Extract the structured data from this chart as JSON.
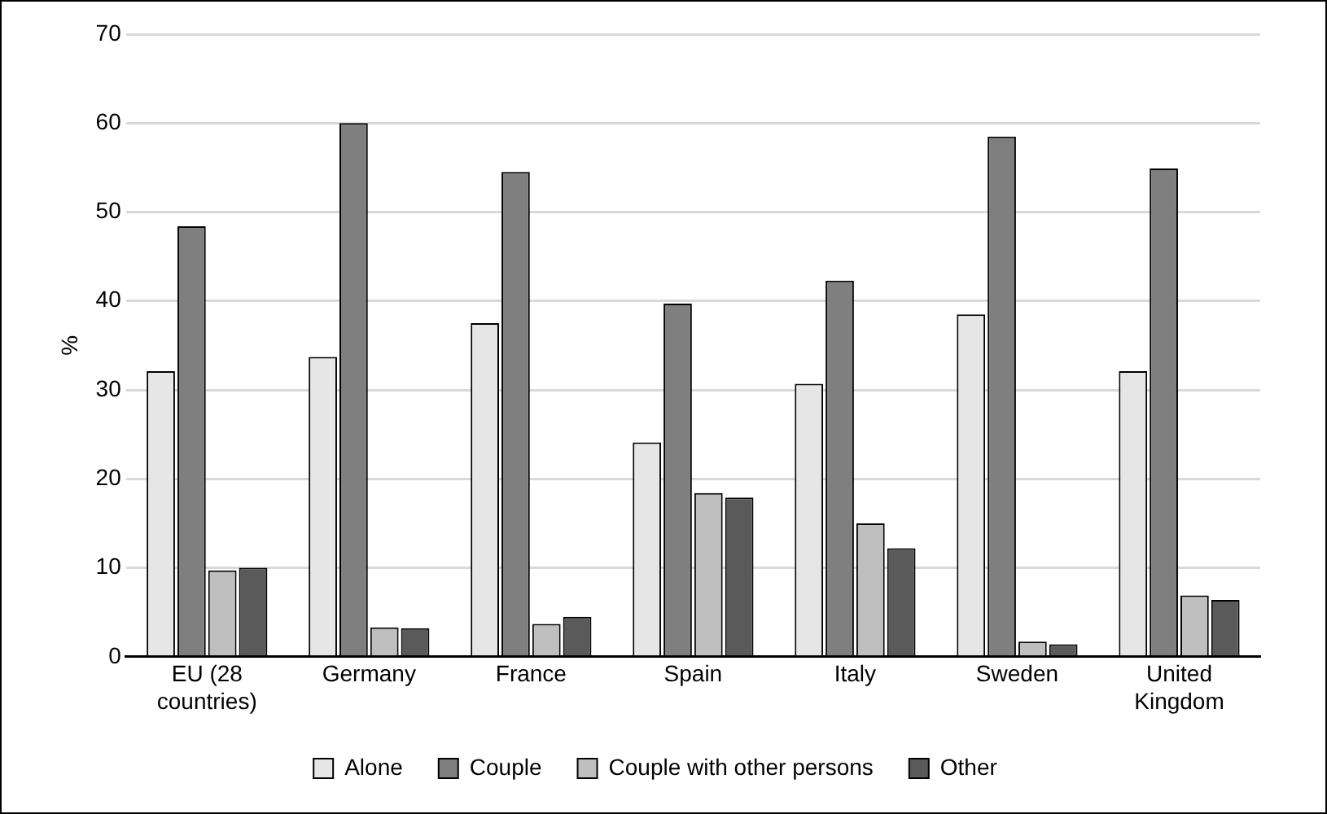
{
  "chart_data": {
    "type": "bar",
    "ylabel": "%",
    "categories": [
      "EU (28 countries)",
      "Germany",
      "France",
      "Spain",
      "Italy",
      "Sweden",
      "United Kingdom"
    ],
    "series": [
      {
        "name": "Alone",
        "color": "#e6e6e6",
        "values": [
          32.1,
          33.7,
          37.5,
          24.1,
          30.7,
          38.5,
          32.1
        ]
      },
      {
        "name": "Couple",
        "color": "#7f7f7f",
        "values": [
          48.4,
          60.0,
          54.5,
          39.7,
          42.3,
          58.5,
          54.9
        ]
      },
      {
        "name": "Couple with other persons",
        "color": "#bfbfbf",
        "values": [
          9.7,
          3.3,
          3.7,
          18.4,
          15.0,
          1.7,
          6.9
        ]
      },
      {
        "name": "Other",
        "color": "#5a5a5a",
        "values": [
          10.0,
          3.2,
          4.5,
          17.9,
          12.2,
          1.4,
          6.4
        ]
      }
    ],
    "ylim": [
      0,
      70
    ],
    "yticks": [
      0,
      10,
      20,
      30,
      40,
      50,
      60,
      70
    ],
    "grid": "y",
    "legend": "bottom"
  }
}
